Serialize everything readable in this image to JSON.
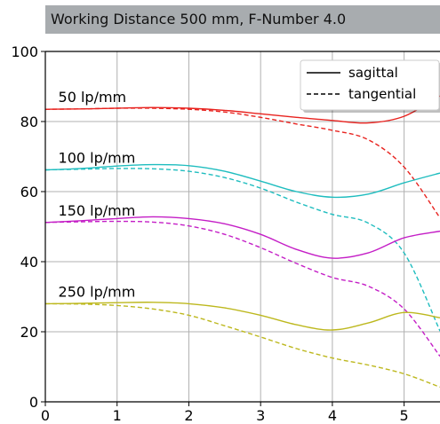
{
  "chart_data": {
    "type": "line",
    "title": "Working Distance 500 mm, F-Number 4.0",
    "xlabel": "",
    "ylabel": "",
    "xlim": [
      0,
      5.5
    ],
    "ylim": [
      0,
      100
    ],
    "xticks": [
      "0",
      "1",
      "2",
      "3",
      "4",
      "5"
    ],
    "yticks": [
      "0",
      "20",
      "40",
      "60",
      "80",
      "100"
    ],
    "grid": true,
    "legend": {
      "placement": "top-right",
      "entries": [
        {
          "label": "sagittal",
          "style": "solid"
        },
        {
          "label": "tangential",
          "style": "dashed"
        }
      ]
    },
    "groups": [
      {
        "label": "50 lp/mm",
        "color": "#e8231f",
        "sagittal": {
          "x": [
            0,
            0.5,
            1,
            1.5,
            2,
            2.5,
            3,
            3.5,
            4,
            4.5,
            5,
            5.5
          ],
          "y": [
            83.5,
            83.6,
            83.8,
            84,
            83.8,
            83.2,
            82.2,
            81.2,
            80.3,
            79.6,
            81.5,
            87.3
          ]
        },
        "tangential": {
          "x": [
            0,
            0.5,
            1,
            1.5,
            2,
            2.5,
            3,
            3.5,
            4,
            4.5,
            5,
            5.5
          ],
          "y": [
            83.5,
            83.6,
            83.8,
            83.8,
            83.5,
            82.7,
            81.2,
            79.3,
            77.5,
            74.8,
            67,
            52.5
          ]
        }
      },
      {
        "label": "100 lp/mm",
        "color": "#1fbdbf",
        "sagittal": {
          "x": [
            0,
            0.5,
            1,
            1.5,
            2,
            2.5,
            3,
            3.5,
            4,
            4.5,
            5,
            5.5
          ],
          "y": [
            66.2,
            66.6,
            67.3,
            67.7,
            67.4,
            65.8,
            63,
            60,
            58.4,
            59.3,
            62.5,
            65.3
          ]
        },
        "tangential": {
          "x": [
            0,
            0.5,
            1,
            1.5,
            2,
            2.5,
            3,
            3.5,
            4,
            4.5,
            5,
            5.5
          ],
          "y": [
            66.2,
            66.4,
            66.6,
            66.5,
            65.8,
            64,
            61,
            57,
            53.5,
            51,
            42.5,
            20.2
          ]
        }
      },
      {
        "label": "150 lp/mm",
        "color": "#c41ec6",
        "sagittal": {
          "x": [
            0,
            0.5,
            1,
            1.5,
            2,
            2.5,
            3,
            3.5,
            4,
            4.5,
            5,
            5.5
          ],
          "y": [
            51.2,
            51.7,
            52.3,
            52.8,
            52.3,
            50.8,
            47.8,
            43.5,
            41,
            42.5,
            46.8,
            48.7
          ]
        },
        "tangential": {
          "x": [
            0,
            0.5,
            1,
            1.5,
            2,
            2.5,
            3,
            3.5,
            4,
            4.5,
            5,
            5.5
          ],
          "y": [
            51.2,
            51.4,
            51.5,
            51.3,
            50.2,
            47.8,
            44,
            39.5,
            35.5,
            33,
            26.5,
            13
          ]
        }
      },
      {
        "label": "250 lp/mm",
        "color": "#bdb81e",
        "sagittal": {
          "x": [
            0,
            0.5,
            1,
            1.5,
            2,
            2.5,
            3,
            3.5,
            4,
            4.5,
            5,
            5.5
          ],
          "y": [
            28,
            28.1,
            28.3,
            28.4,
            28,
            26.8,
            24.7,
            22,
            20.5,
            22.5,
            25.5,
            24
          ]
        },
        "tangential": {
          "x": [
            0,
            0.5,
            1,
            1.5,
            2,
            2.5,
            3,
            3.5,
            4,
            4.5,
            5,
            5.5
          ],
          "y": [
            28,
            27.9,
            27.5,
            26.5,
            24.7,
            21.7,
            18.5,
            15.2,
            12.5,
            10.5,
            8,
            4.2
          ]
        }
      }
    ]
  }
}
